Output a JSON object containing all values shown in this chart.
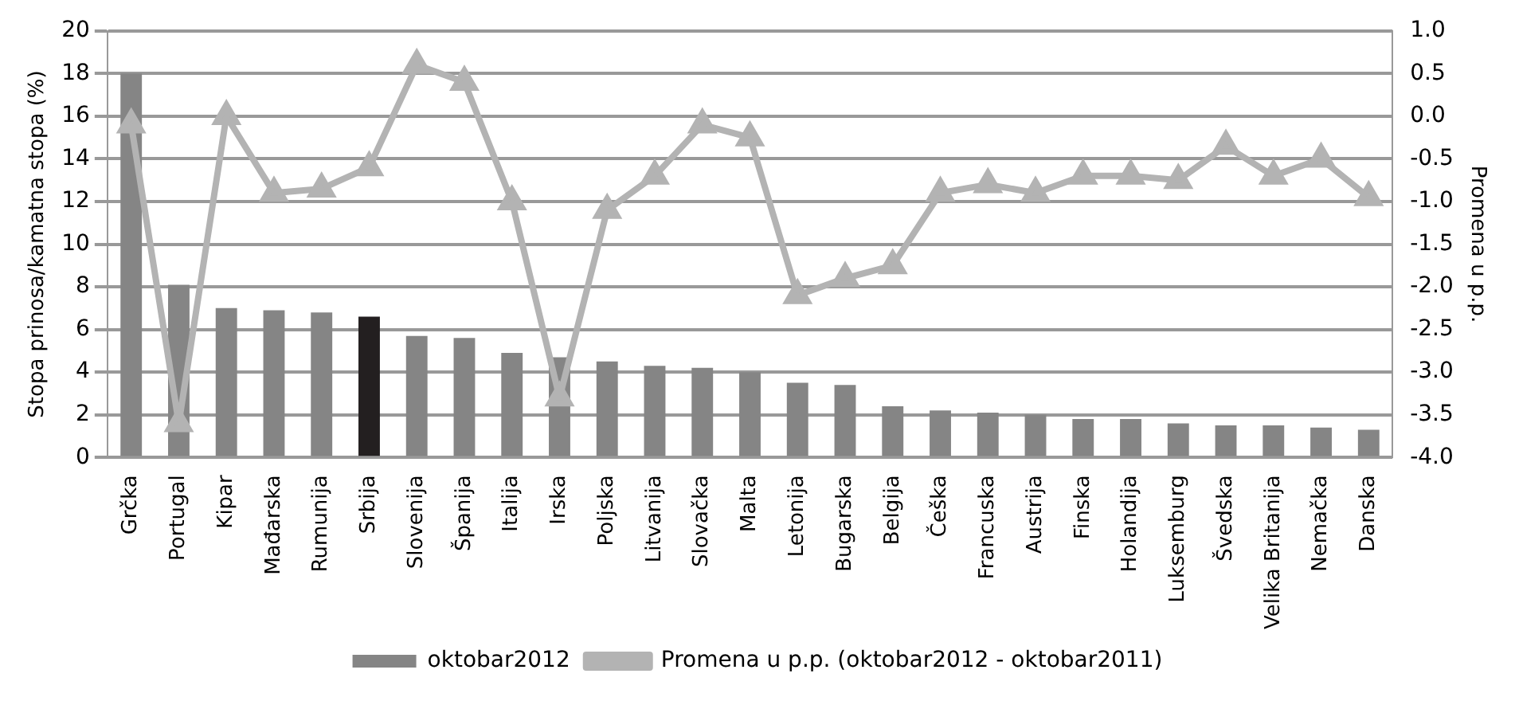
{
  "chart_data": {
    "type": "bar",
    "ylabel": "Stopa prinosa/kamatna stopa (%)",
    "y2label": "Promena u p.p.",
    "categories": [
      "Grčka",
      "Portugal",
      "Kipar",
      "Mađarska",
      "Rumunija",
      "Srbija",
      "Slovenija",
      "Španija",
      "Italija",
      "Irska",
      "Poljska",
      "Litvanija",
      "Slovačka",
      "Malta",
      "Letonija",
      "Bugarska",
      "Belgija",
      "Češka",
      "Francuska",
      "Austrija",
      "Finska",
      "Holandija",
      "Luksemburg",
      "Švedska",
      "Velika Britanija",
      "Nemačka",
      "Danska"
    ],
    "series": [
      {
        "name": "oktobar2012",
        "color": "#858585",
        "colors": [
          "#858585",
          "#858585",
          "#858585",
          "#858585",
          "#858585",
          "#231f20",
          "#858585",
          "#858585",
          "#858585",
          "#858585",
          "#858585",
          "#858585",
          "#858585",
          "#858585",
          "#858585",
          "#858585",
          "#858585",
          "#858585",
          "#858585",
          "#858585",
          "#858585",
          "#858585",
          "#858585",
          "#858585",
          "#858585",
          "#858585",
          "#858585"
        ],
        "values": [
          18,
          8.1,
          7.0,
          6.9,
          6.8,
          6.6,
          5.7,
          5.6,
          4.9,
          4.7,
          4.5,
          4.3,
          4.2,
          4.0,
          3.5,
          3.4,
          2.4,
          2.2,
          2.1,
          2.0,
          1.8,
          1.8,
          1.6,
          1.5,
          1.5,
          1.4,
          1.3
        ]
      },
      {
        "name": "Promena u p.p. (oktobar2012 - oktobar2011)",
        "type": "line",
        "axis": "y2",
        "color": "#b3b3b3",
        "marker": "triangle",
        "values": [
          -0.1,
          -3.6,
          0.0,
          -0.9,
          -0.85,
          -0.6,
          0.6,
          0.4,
          -1.0,
          -3.3,
          -1.1,
          -0.7,
          -0.1,
          -0.25,
          -2.1,
          -1.9,
          -1.75,
          -0.9,
          -0.8,
          -0.9,
          -0.7,
          -0.7,
          -0.75,
          -0.35,
          -0.7,
          -0.5,
          -0.95
        ]
      }
    ],
    "ylim": [
      0,
      20
    ],
    "yticks": [
      0,
      2,
      4,
      6,
      8,
      10,
      12,
      14,
      16,
      18,
      20
    ],
    "y2lim": [
      -4,
      1
    ],
    "y2ticks": [
      {
        "value": -4,
        "label": "-4.0"
      },
      {
        "value": -3.5,
        "label": "-3.5"
      },
      {
        "value": -3,
        "label": "-3.0"
      },
      {
        "value": -2.5,
        "label": "-2.5"
      },
      {
        "value": -2,
        "label": "-2.0"
      },
      {
        "value": -1.5,
        "label": "-1.5"
      },
      {
        "value": -1,
        "label": "-1.0"
      },
      {
        "value": -0.5,
        "label": "-0.5"
      },
      {
        "value": 0,
        "label": "0.0"
      },
      {
        "value": 0.5,
        "label": "0.5"
      },
      {
        "value": 1,
        "label": "1.0"
      }
    ],
    "grid": "y",
    "legend": "bottom"
  }
}
